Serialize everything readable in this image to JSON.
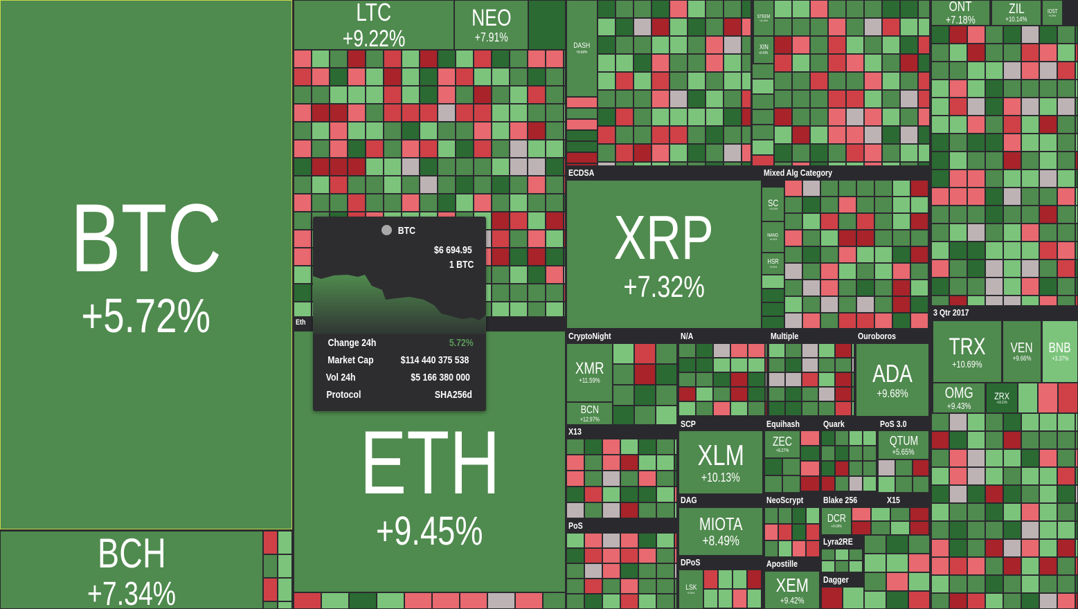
{
  "colors": {
    "base": "#4f8a4e",
    "dark": "#2b6a33",
    "light": "#7cc47c",
    "red": "#cf4147",
    "pink": "#e8696f",
    "deep_red": "#a8232a",
    "gray": "#bdb3b5",
    "selected_border": "#c8d84b"
  },
  "coins": [
    {
      "symbol": "BTC",
      "change": "+5.72%"
    },
    {
      "symbol": "BCH",
      "change": "+7.34%"
    },
    {
      "symbol": "LTC",
      "change": "+9.22%"
    },
    {
      "symbol": "NEO",
      "change": "+7.91%"
    },
    {
      "symbol": "ETH",
      "change": "+9.45%"
    },
    {
      "symbol": "DASH",
      "change": "+8.69%"
    },
    {
      "symbol": "STEEM",
      "change": "+11.10%"
    },
    {
      "symbol": "XIN",
      "change": "+0.40%"
    },
    {
      "symbol": "XRP",
      "change": "+7.32%"
    },
    {
      "symbol": "SC",
      "change": "+10.03%"
    },
    {
      "symbol": "NANO",
      "change": "+8.41%"
    },
    {
      "symbol": "HSR",
      "change": "+5.01%"
    },
    {
      "symbol": "XMR",
      "change": "+11.59%"
    },
    {
      "symbol": "BCN",
      "change": "+12.97%"
    },
    {
      "symbol": "ADA",
      "change": "+9.68%"
    },
    {
      "symbol": "XLM",
      "change": "+10.13%"
    },
    {
      "symbol": "ZEC",
      "change": "+8.27%"
    },
    {
      "symbol": "QTUM",
      "change": "+5.65%"
    },
    {
      "symbol": "MIOTA",
      "change": "+8.49%"
    },
    {
      "symbol": "DCR",
      "change": "+14.28%"
    },
    {
      "symbol": "LSK",
      "change": "+5.04%"
    },
    {
      "symbol": "XEM",
      "change": "+9.42%"
    },
    {
      "symbol": "ONT",
      "change": "+7.18%"
    },
    {
      "symbol": "ZIL",
      "change": "+10.14%"
    },
    {
      "symbol": "IOST",
      "change": "+8.35%"
    },
    {
      "symbol": "TRX",
      "change": "+10.69%"
    },
    {
      "symbol": "VEN",
      "change": "+9.66%"
    },
    {
      "symbol": "BNB",
      "change": "+3.37%"
    },
    {
      "symbol": "OMG",
      "change": "+9.43%"
    },
    {
      "symbol": "ZRX",
      "change": "+16.21%"
    }
  ],
  "categories": [
    "Eth",
    "ECDSA",
    "Mixed Alg Category",
    "CryptoNight",
    "N/A",
    "Multiple",
    "Ouroboros",
    "X13",
    "SCP",
    "Equihash",
    "Quark",
    "PoS 3.0",
    "DAG",
    "NeoScrypt",
    "Blake 256",
    "X15",
    "PoS",
    "DPoS",
    "Apostille",
    "Lyra2RE",
    "Dagger",
    "3 Qtr 2017"
  ],
  "tooltip": {
    "coin": "BTC",
    "price": "$6 694.95",
    "unit": "1 BTC",
    "rows": [
      {
        "label": "Change 24h",
        "value": "5.72%"
      },
      {
        "label": "Market Cap",
        "value": "$114 440 375 538"
      },
      {
        "label": "Vol 24h",
        "value": "$5 166 380 000"
      },
      {
        "label": "Protocol",
        "value": "SHA256d"
      }
    ],
    "change_color": "#5a9a58"
  }
}
